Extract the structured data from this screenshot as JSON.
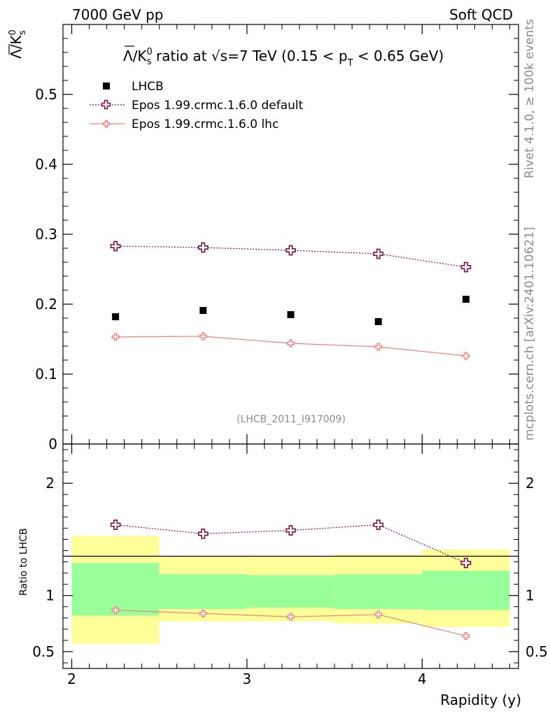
{
  "header": {
    "left": "7000 GeV pp",
    "right": "Soft QCD"
  },
  "side_text": {
    "top": "Rivet 4.1.0, ≥ 100k events",
    "bottom": "mcplots.cern.ch [arXiv:2401.10621]"
  },
  "chart_data": {
    "type": "scatter",
    "title": "Λ̅/K⁰ₛ ratio at √s=7 TeV (0.15 < p_T < 0.65 GeV)",
    "title_parts": {
      "lambda": "Λ",
      "slash_k": "/K",
      "sup0": "0",
      "sub_s": "s",
      "ratio_at": " ratio at ",
      "sqrt": "√",
      "s_energy": "s=7 TeV (0.15 < p",
      "sub_T": "T",
      "range_end": " < 0.65 GeV)"
    },
    "ylabel": {
      "lambda": "Λ",
      "slash_k": "/K",
      "sup0": "0",
      "sub_s": "s"
    },
    "xlabel": "Rapidity (y)",
    "ratio_ylabel": "Ratio to LHCB",
    "analysis_id": "(LHCB_2011_I917009)",
    "xlim": [
      1.95,
      4.55
    ],
    "ylim": [
      0,
      0.6
    ],
    "ratio_ylim": [
      0.35,
      2.35
    ],
    "x": [
      2.25,
      2.75,
      3.25,
      3.75,
      4.25
    ],
    "bins": [
      [
        2.0,
        2.5
      ],
      [
        2.5,
        3.0
      ],
      [
        3.0,
        3.5
      ],
      [
        3.5,
        4.0
      ],
      [
        4.0,
        4.5
      ]
    ],
    "series": [
      {
        "name": "LHCB",
        "values": [
          0.182,
          0.191,
          0.185,
          0.175,
          0.207
        ]
      },
      {
        "name": "Epos 1.99.crmc.1.6.0 default",
        "values": [
          0.283,
          0.281,
          0.277,
          0.272,
          0.253
        ]
      },
      {
        "name": "Epos 1.99.crmc.1.6.0 lhc",
        "values": [
          0.153,
          0.154,
          0.144,
          0.139,
          0.126
        ]
      }
    ],
    "ratio_series": [
      {
        "name": "Epos 1.99.crmc.1.6.0 default",
        "values": [
          1.63,
          1.55,
          1.58,
          1.63,
          1.29
        ]
      },
      {
        "name": "Epos 1.99.crmc.1.6.0 lhc",
        "values": [
          0.87,
          0.84,
          0.81,
          0.83,
          0.64
        ]
      }
    ],
    "uncertainty_bands": {
      "stat": [
        [
          0.82,
          1.29
        ],
        [
          0.88,
          1.19
        ],
        [
          0.89,
          1.18
        ],
        [
          0.88,
          1.19
        ],
        [
          0.87,
          1.22
        ]
      ],
      "total": [
        [
          0.57,
          1.53
        ],
        [
          0.77,
          1.35
        ],
        [
          0.77,
          1.35
        ],
        [
          0.75,
          1.37
        ],
        [
          0.72,
          1.41
        ]
      ]
    },
    "yticks": [
      {
        "value": 0,
        "label": "0"
      },
      {
        "value": 0.1,
        "label": "0.1"
      },
      {
        "value": 0.2,
        "label": "0.2"
      },
      {
        "value": 0.3,
        "label": "0.3"
      },
      {
        "value": 0.4,
        "label": "0.4"
      },
      {
        "value": 0.5,
        "label": "0.5"
      }
    ],
    "ratio_yticks": [
      {
        "value": 0.5,
        "label": "0.5"
      },
      {
        "value": 1,
        "label": "1"
      },
      {
        "value": 2,
        "label": "2"
      }
    ],
    "xticks": [
      {
        "value": 2,
        "label": "2"
      },
      {
        "value": 3,
        "label": "3"
      },
      {
        "value": 4,
        "label": "4"
      }
    ],
    "legend_position": "top-left",
    "colors": {
      "data": "#000000",
      "default": "#7a1045",
      "lhc": "#f08080",
      "band_stat": "#99ff99",
      "band_total": "#ffff99"
    }
  }
}
